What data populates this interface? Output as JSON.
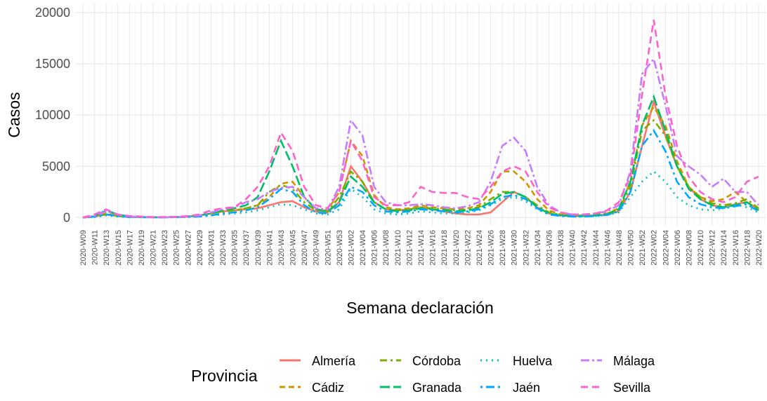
{
  "chart_data": {
    "type": "line",
    "x_label": "Semana declaración",
    "y_label": "Casos",
    "legend_title": "Provincia",
    "categories": [
      "2020-W09",
      "2020-W11",
      "2020-W13",
      "2020-W15",
      "2020-W17",
      "2020-W19",
      "2020-W21",
      "2020-W23",
      "2020-W25",
      "2020-W27",
      "2020-W29",
      "2020-W31",
      "2020-W33",
      "2020-W35",
      "2020-W37",
      "2020-W39",
      "2020-W41",
      "2020-W43",
      "2020-W45",
      "2020-W47",
      "2020-W49",
      "2020-W51",
      "2020-W53",
      "2021-W02",
      "2021-W04",
      "2021-W06",
      "2021-W08",
      "2021-W10",
      "2021-W12",
      "2021-W14",
      "2021-W16",
      "2021-W18",
      "2021-W20",
      "2021-W22",
      "2021-W24",
      "2021-W26",
      "2021-W28",
      "2021-W30",
      "2021-W32",
      "2021-W34",
      "2021-W36",
      "2021-W38",
      "2021-W40",
      "2021-W42",
      "2021-W44",
      "2021-W46",
      "2021-W48",
      "2021-W50",
      "2021-W52",
      "2022-W02",
      "2022-W04",
      "2022-W06",
      "2022-W08",
      "2022-W10",
      "2022-W12",
      "2022-W14",
      "2022-W16",
      "2022-W18",
      "2022-W20"
    ],
    "ylim": [
      -800,
      20900
    ],
    "yticks": [
      0,
      5000,
      10000,
      15000,
      20000
    ],
    "grid": true,
    "series": [
      {
        "name": "Almería",
        "color": "#F8766D",
        "values": [
          0,
          100,
          300,
          150,
          80,
          50,
          30,
          30,
          50,
          100,
          200,
          400,
          600,
          700,
          800,
          900,
          1200,
          1500,
          1600,
          1000,
          600,
          500,
          1500,
          5000,
          3500,
          1500,
          800,
          700,
          800,
          1000,
          800,
          600,
          400,
          300,
          300,
          500,
          1500,
          2500,
          2000,
          1000,
          400,
          200,
          150,
          150,
          200,
          300,
          600,
          2500,
          7000,
          11300,
          8000,
          5000,
          3000,
          1800,
          1200,
          1000,
          1300,
          1500,
          800
        ]
      },
      {
        "name": "Cádiz",
        "color": "#CD9600",
        "values": [
          0,
          100,
          400,
          200,
          80,
          50,
          30,
          30,
          50,
          100,
          200,
          400,
          600,
          700,
          900,
          1200,
          2000,
          3300,
          3500,
          2000,
          800,
          700,
          2500,
          7500,
          6000,
          2200,
          1000,
          800,
          900,
          1200,
          1000,
          900,
          800,
          900,
          1200,
          2500,
          4500,
          4500,
          3500,
          1800,
          700,
          300,
          200,
          200,
          250,
          400,
          900,
          3500,
          9000,
          10800,
          9000,
          5500,
          3000,
          2000,
          1600,
          1800,
          2500,
          1500,
          800
        ]
      },
      {
        "name": "Córdoba",
        "color": "#7CAE00",
        "values": [
          0,
          100,
          300,
          150,
          60,
          40,
          30,
          30,
          50,
          100,
          200,
          400,
          600,
          700,
          900,
          1200,
          2500,
          3200,
          2800,
          1500,
          700,
          600,
          2000,
          4500,
          3500,
          1500,
          800,
          700,
          800,
          1000,
          900,
          800,
          700,
          800,
          1000,
          1800,
          2500,
          2500,
          2000,
          1200,
          500,
          250,
          200,
          200,
          250,
          400,
          800,
          3000,
          8500,
          9500,
          8000,
          5000,
          3000,
          2000,
          1400,
          1200,
          1400,
          1800,
          900
        ]
      },
      {
        "name": "Granada",
        "color": "#00BE67",
        "values": [
          0,
          150,
          700,
          300,
          100,
          60,
          30,
          30,
          50,
          100,
          200,
          400,
          700,
          900,
          1200,
          2000,
          4500,
          7500,
          5000,
          2000,
          800,
          600,
          1500,
          4000,
          3000,
          1500,
          800,
          600,
          700,
          900,
          800,
          700,
          600,
          700,
          900,
          1500,
          2300,
          2500,
          2000,
          1000,
          400,
          200,
          150,
          150,
          200,
          300,
          800,
          3500,
          9000,
          11800,
          8500,
          5000,
          2800,
          1800,
          1200,
          1000,
          1200,
          1500,
          700
        ]
      },
      {
        "name": "Huelva",
        "color": "#00BFC4",
        "values": [
          0,
          50,
          200,
          100,
          40,
          30,
          20,
          20,
          30,
          60,
          100,
          200,
          300,
          400,
          500,
          700,
          1000,
          1300,
          1200,
          800,
          400,
          300,
          800,
          2800,
          2000,
          800,
          400,
          300,
          400,
          600,
          500,
          400,
          400,
          500,
          700,
          1200,
          1800,
          2000,
          1600,
          800,
          300,
          150,
          100,
          100,
          150,
          250,
          500,
          2000,
          3500,
          4500,
          3500,
          2000,
          1200,
          800,
          700,
          900,
          1300,
          1000,
          500
        ]
      },
      {
        "name": "Jaén",
        "color": "#00A9FF",
        "values": [
          0,
          80,
          300,
          150,
          50,
          30,
          20,
          20,
          30,
          60,
          100,
          200,
          400,
          500,
          700,
          1000,
          1800,
          2800,
          2500,
          1200,
          500,
          400,
          1200,
          3000,
          2500,
          1200,
          600,
          500,
          600,
          800,
          700,
          600,
          500,
          600,
          800,
          1300,
          2000,
          2200,
          1800,
          900,
          300,
          150,
          100,
          100,
          150,
          250,
          600,
          2500,
          7000,
          8500,
          6500,
          3500,
          2000,
          1300,
          1000,
          900,
          1100,
          1300,
          600
        ]
      },
      {
        "name": "Málaga",
        "color": "#C77CFF",
        "values": [
          0,
          150,
          600,
          300,
          100,
          60,
          30,
          30,
          50,
          100,
          200,
          500,
          800,
          1000,
          1500,
          1800,
          2500,
          2900,
          3000,
          2000,
          900,
          800,
          3000,
          9500,
          8000,
          3000,
          1500,
          1200,
          1200,
          1300,
          1200,
          1000,
          900,
          1100,
          1500,
          3500,
          7000,
          7800,
          6500,
          3000,
          1200,
          500,
          300,
          300,
          400,
          600,
          1200,
          4500,
          14000,
          15500,
          11000,
          6000,
          5000,
          4200,
          3000,
          3800,
          2500,
          2500,
          1200
        ]
      },
      {
        "name": "Sevilla",
        "color": "#FF61CC",
        "values": [
          0,
          300,
          800,
          300,
          150,
          100,
          50,
          50,
          80,
          150,
          300,
          700,
          900,
          1000,
          1800,
          3000,
          5000,
          8300,
          6500,
          3000,
          1200,
          900,
          2500,
          7500,
          5500,
          2000,
          1200,
          1200,
          1500,
          3000,
          2500,
          2400,
          2400,
          2000,
          1800,
          3000,
          4500,
          5000,
          4500,
          2500,
          1000,
          500,
          300,
          300,
          400,
          700,
          1500,
          4000,
          12000,
          19300,
          12000,
          7000,
          4000,
          2500,
          1800,
          1500,
          2000,
          3500,
          4000
        ]
      }
    ]
  }
}
